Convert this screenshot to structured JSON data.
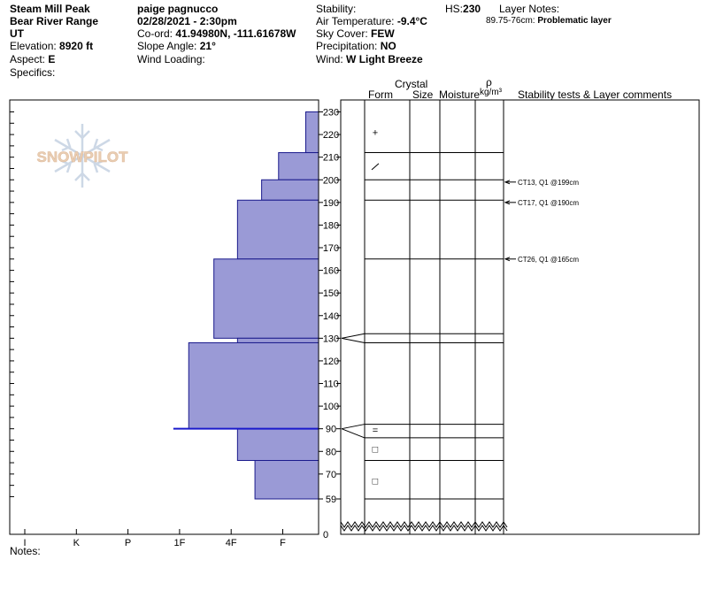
{
  "header": {
    "location": "Steam Mill Peak",
    "range": "Bear River Range",
    "state": "UT",
    "elevation_label": "Elevation:",
    "elevation_value": "8920 ft",
    "aspect_label": "Aspect:",
    "aspect_value": "E",
    "specifics_label": "Specifics:",
    "observer": "paige pagnucco",
    "datetime": "02/28/2021 - 2:30pm",
    "coord_label": "Co-ord:",
    "coord_value": "41.94980N, -111.61678W",
    "slope_label": "Slope Angle:",
    "slope_value": "21°",
    "wind_loading_label": "Wind Loading:",
    "stability_label": "Stability:",
    "air_temp_label": "Air Temperature:",
    "air_temp_value": "-9.4°C",
    "sky_label": "Sky Cover:",
    "sky_value": "FEW",
    "precip_label": "Precipitation:",
    "precip_value": "NO",
    "wind_label": "Wind:",
    "wind_value": "W Light Breeze",
    "hs_label": "HS:",
    "hs_value": "230",
    "layer_notes_label": "Layer Notes:",
    "layer_note_range": "89.75-76cm:",
    "layer_note_text": "Problematic layer"
  },
  "watermark": "SNOWPILOT",
  "columns": {
    "crystal": "Crystal",
    "form": "Form",
    "size": "Size",
    "moisture": "Moisture",
    "rho": "ρ",
    "density_unit": "kg/m³",
    "comments": "Stability tests & Layer comments"
  },
  "notes_label": "Notes:",
  "chart_data": {
    "type": "bar",
    "description_axis": "hardness profile",
    "hardness_labels": [
      "I",
      "K",
      "P",
      "1F",
      "4F",
      "F"
    ],
    "y_ticks": [
      230,
      220,
      210,
      200,
      190,
      180,
      170,
      160,
      150,
      140,
      130,
      120,
      110,
      100,
      90,
      80,
      70,
      59
    ],
    "y_zero_label": "0",
    "layers": [
      {
        "top": 230,
        "bottom": 212,
        "hardness": 0.25
      },
      {
        "top": 212,
        "bottom": 200,
        "hardness": 0.78
      },
      {
        "top": 200,
        "bottom": 191,
        "hardness": 1.11
      },
      {
        "top": 191,
        "bottom": 165,
        "hardness": 1.58
      },
      {
        "top": 165,
        "bottom": 130,
        "hardness": 2.04
      },
      {
        "top": 130,
        "bottom": 128,
        "hardness": 1.58
      },
      {
        "top": 128,
        "bottom": 90,
        "hardness": 2.53
      },
      {
        "top": 90,
        "bottom": 76,
        "hardness": 1.58
      },
      {
        "top": 76,
        "bottom": 59,
        "hardness": 1.24
      }
    ],
    "thin_layer": {
      "depth": 90,
      "hardness": 2.83
    },
    "layer_boundaries": [
      212,
      200,
      191,
      165,
      132,
      128,
      92,
      86,
      76,
      59
    ],
    "crystal_forms": [
      {
        "depth": 221,
        "symbol": "+"
      },
      {
        "depth": 206,
        "symbol": "/"
      },
      {
        "depth": 89.5,
        "symbol": "="
      },
      {
        "depth": 81,
        "symbol": "□"
      },
      {
        "depth": 67,
        "symbol": "□"
      }
    ],
    "stability_tests": [
      {
        "depth": 199,
        "label": "CT13, Q1 @199cm"
      },
      {
        "depth": 190,
        "label": "CT17, Q1 @190cm"
      },
      {
        "depth": 165,
        "label": "CT26, Q1 @165cm"
      }
    ],
    "colors": {
      "bar_fill": "#9a9ad6",
      "bar_stroke": "#1a1a8c",
      "thin_layer": "#1a1acc",
      "watermark": "#c8d4e4",
      "watermark_text": "#e6c8a8"
    }
  }
}
